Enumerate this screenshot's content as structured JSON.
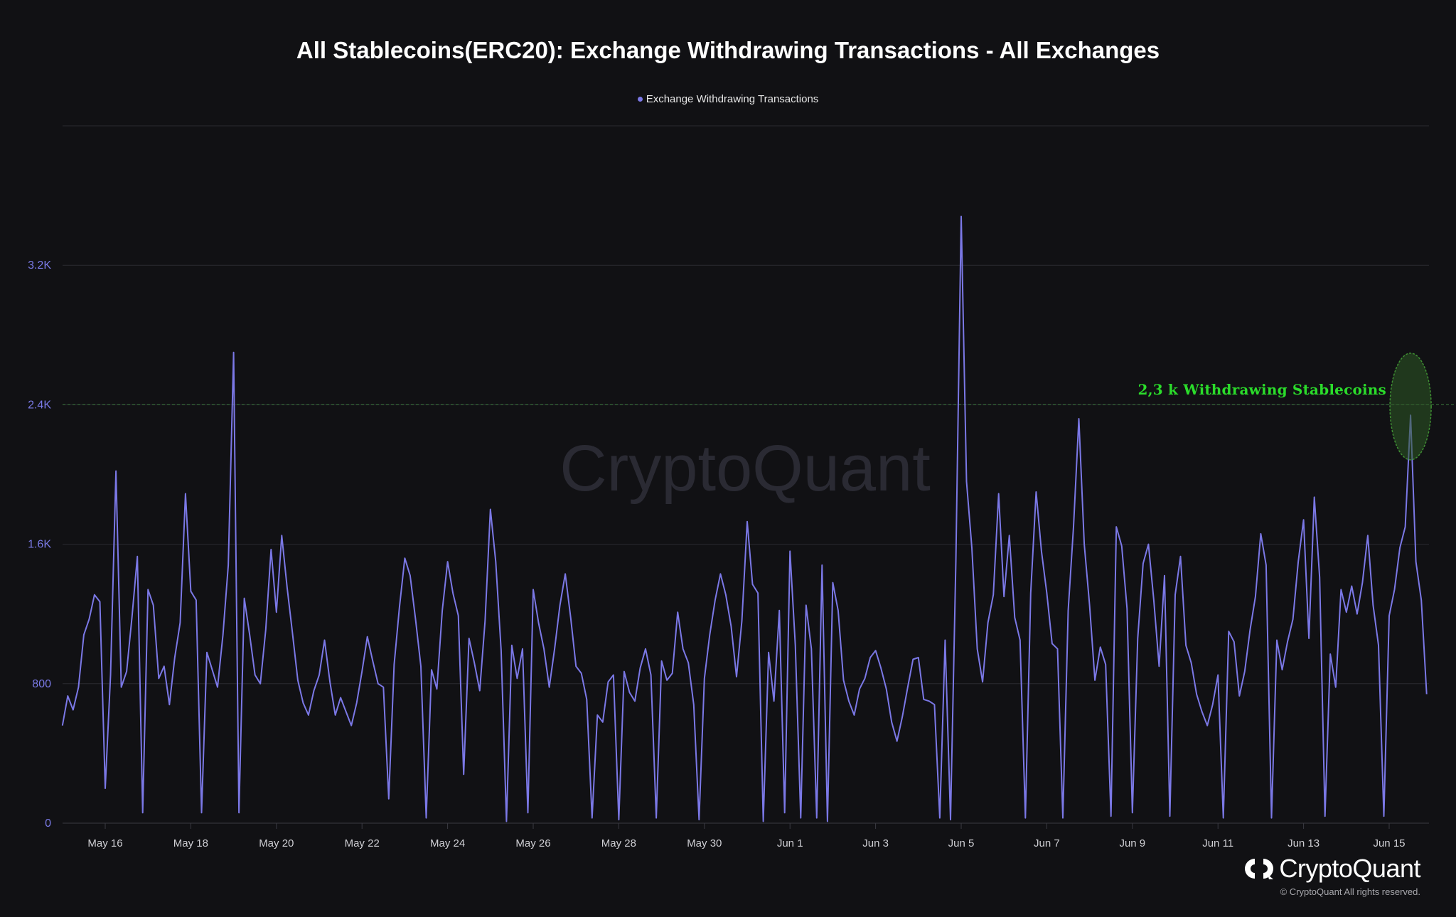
{
  "chart_data": {
    "type": "line",
    "title": "All Stablecoins(ERC20): Exchange Withdrawing Transactions - All Exchanges",
    "legend": {
      "position": "top-center",
      "entries": [
        "Exchange Withdrawing Transactions"
      ]
    },
    "series": [
      {
        "name": "Exchange Withdrawing Transactions",
        "color": "#7b78e6",
        "points": [
          [
            "May 15 00:00",
            560
          ],
          [
            "May 15 03:00",
            730
          ],
          [
            "May 15 06:00",
            650
          ],
          [
            "May 15 09:00",
            780
          ],
          [
            "May 15 12:00",
            1080
          ],
          [
            "May 15 15:00",
            1170
          ],
          [
            "May 15 18:00",
            1310
          ],
          [
            "May 15 21:00",
            1270
          ],
          [
            "May 16 00:00",
            200
          ],
          [
            "May 16 03:00",
            850
          ],
          [
            "May 16 06:00",
            2020
          ],
          [
            "May 16 09:00",
            780
          ],
          [
            "May 16 12:00",
            870
          ],
          [
            "May 16 15:00",
            1180
          ],
          [
            "May 16 18:00",
            1530
          ],
          [
            "May 16 21:00",
            60
          ],
          [
            "May 17 00:00",
            1340
          ],
          [
            "May 17 03:00",
            1250
          ],
          [
            "May 17 06:00",
            830
          ],
          [
            "May 17 09:00",
            900
          ],
          [
            "May 17 12:00",
            680
          ],
          [
            "May 17 15:00",
            950
          ],
          [
            "May 17 18:00",
            1150
          ],
          [
            "May 17 21:00",
            1890
          ],
          [
            "May 18 00:00",
            1330
          ],
          [
            "May 18 03:00",
            1280
          ],
          [
            "May 18 06:00",
            60
          ],
          [
            "May 18 09:00",
            980
          ],
          [
            "May 18 12:00",
            880
          ],
          [
            "May 18 15:00",
            780
          ],
          [
            "May 18 18:00",
            1080
          ],
          [
            "May 18 21:00",
            1480
          ],
          [
            "May 19 00:00",
            2700
          ],
          [
            "May 19 03:00",
            60
          ],
          [
            "May 19 06:00",
            1290
          ],
          [
            "May 19 09:00",
            1080
          ],
          [
            "May 19 12:00",
            850
          ],
          [
            "May 19 15:00",
            800
          ],
          [
            "May 19 18:00",
            1110
          ],
          [
            "May 19 21:00",
            1570
          ],
          [
            "May 20 00:00",
            1210
          ],
          [
            "May 20 03:00",
            1650
          ],
          [
            "May 20 06:00",
            1350
          ],
          [
            "May 20 09:00",
            1090
          ],
          [
            "May 20 12:00",
            820
          ],
          [
            "May 20 15:00",
            690
          ],
          [
            "May 20 18:00",
            620
          ],
          [
            "May 20 21:00",
            760
          ],
          [
            "May 21 00:00",
            850
          ],
          [
            "May 21 03:00",
            1050
          ],
          [
            "May 21 06:00",
            810
          ],
          [
            "May 21 09:00",
            620
          ],
          [
            "May 21 12:00",
            720
          ],
          [
            "May 21 15:00",
            640
          ],
          [
            "May 21 18:00",
            560
          ],
          [
            "May 21 21:00",
            690
          ],
          [
            "May 22 00:00",
            870
          ],
          [
            "May 22 03:00",
            1070
          ],
          [
            "May 22 06:00",
            930
          ],
          [
            "May 22 09:00",
            800
          ],
          [
            "May 22 12:00",
            780
          ],
          [
            "May 22 15:00",
            140
          ],
          [
            "May 22 18:00",
            910
          ],
          [
            "May 22 21:00",
            1240
          ],
          [
            "May 23 00:00",
            1520
          ],
          [
            "May 23 03:00",
            1420
          ],
          [
            "May 23 06:00",
            1170
          ],
          [
            "May 23 09:00",
            900
          ],
          [
            "May 23 12:00",
            30
          ],
          [
            "May 23 15:00",
            880
          ],
          [
            "May 23 18:00",
            770
          ],
          [
            "May 23 21:00",
            1220
          ],
          [
            "May 24 00:00",
            1500
          ],
          [
            "May 24 03:00",
            1320
          ],
          [
            "May 24 06:00",
            1190
          ],
          [
            "May 24 09:00",
            280
          ],
          [
            "May 24 12:00",
            1060
          ],
          [
            "May 24 15:00",
            920
          ],
          [
            "May 24 18:00",
            760
          ],
          [
            "May 24 21:00",
            1160
          ],
          [
            "May 25 00:00",
            1800
          ],
          [
            "May 25 03:00",
            1500
          ],
          [
            "May 25 06:00",
            990
          ],
          [
            "May 25 09:00",
            10
          ],
          [
            "May 25 12:00",
            1020
          ],
          [
            "May 25 15:00",
            830
          ],
          [
            "May 25 18:00",
            1000
          ],
          [
            "May 25 21:00",
            60
          ],
          [
            "May 26 00:00",
            1340
          ],
          [
            "May 26 03:00",
            1150
          ],
          [
            "May 26 06:00",
            1000
          ],
          [
            "May 26 09:00",
            780
          ],
          [
            "May 26 12:00",
            1000
          ],
          [
            "May 26 15:00",
            1250
          ],
          [
            "May 26 18:00",
            1430
          ],
          [
            "May 26 21:00",
            1180
          ],
          [
            "May 27 00:00",
            900
          ],
          [
            "May 27 03:00",
            860
          ],
          [
            "May 27 06:00",
            710
          ],
          [
            "May 27 09:00",
            30
          ],
          [
            "May 27 12:00",
            620
          ],
          [
            "May 27 15:00",
            580
          ],
          [
            "May 27 18:00",
            810
          ],
          [
            "May 27 21:00",
            850
          ],
          [
            "May 28 00:00",
            20
          ],
          [
            "May 28 03:00",
            870
          ],
          [
            "May 28 06:00",
            750
          ],
          [
            "May 28 09:00",
            700
          ],
          [
            "May 28 12:00",
            890
          ],
          [
            "May 28 15:00",
            1000
          ],
          [
            "May 28 18:00",
            850
          ],
          [
            "May 28 21:00",
            30
          ],
          [
            "May 29 00:00",
            930
          ],
          [
            "May 29 03:00",
            820
          ],
          [
            "May 29 06:00",
            860
          ],
          [
            "May 29 09:00",
            1210
          ],
          [
            "May 29 12:00",
            1000
          ],
          [
            "May 29 15:00",
            920
          ],
          [
            "May 29 18:00",
            680
          ],
          [
            "May 29 21:00",
            20
          ],
          [
            "May 30 00:00",
            830
          ],
          [
            "May 30 03:00",
            1080
          ],
          [
            "May 30 06:00",
            1280
          ],
          [
            "May 30 09:00",
            1430
          ],
          [
            "May 30 12:00",
            1310
          ],
          [
            "May 30 15:00",
            1130
          ],
          [
            "May 30 18:00",
            840
          ],
          [
            "May 30 21:00",
            1160
          ],
          [
            "May 31 00:00",
            1730
          ],
          [
            "May 31 03:00",
            1370
          ],
          [
            "May 31 06:00",
            1320
          ],
          [
            "May 31 09:00",
            10
          ],
          [
            "May 31 12:00",
            980
          ],
          [
            "May 31 15:00",
            700
          ],
          [
            "May 31 18:00",
            1220
          ],
          [
            "May 31 21:00",
            60
          ],
          [
            "Jun 1 00:00",
            1560
          ],
          [
            "Jun 1 03:00",
            1020
          ],
          [
            "Jun 1 06:00",
            30
          ],
          [
            "Jun 1 09:00",
            1250
          ],
          [
            "Jun 1 12:00",
            1000
          ],
          [
            "Jun 1 15:00",
            30
          ],
          [
            "Jun 1 18:00",
            1480
          ],
          [
            "Jun 1 21:00",
            10
          ],
          [
            "Jun 2 00:00",
            1380
          ],
          [
            "Jun 2 03:00",
            1220
          ],
          [
            "Jun 2 06:00",
            820
          ],
          [
            "Jun 2 09:00",
            700
          ],
          [
            "Jun 2 12:00",
            620
          ],
          [
            "Jun 2 15:00",
            770
          ],
          [
            "Jun 2 18:00",
            830
          ],
          [
            "Jun 2 21:00",
            950
          ],
          [
            "Jun 3 00:00",
            990
          ],
          [
            "Jun 3 03:00",
            890
          ],
          [
            "Jun 3 06:00",
            770
          ],
          [
            "Jun 3 09:00",
            580
          ],
          [
            "Jun 3 12:00",
            470
          ],
          [
            "Jun 3 15:00",
            610
          ],
          [
            "Jun 3 18:00",
            780
          ],
          [
            "Jun 3 21:00",
            940
          ],
          [
            "Jun 4 00:00",
            950
          ],
          [
            "Jun 4 03:00",
            710
          ],
          [
            "Jun 4 06:00",
            700
          ],
          [
            "Jun 4 09:00",
            680
          ],
          [
            "Jun 4 12:00",
            30
          ],
          [
            "Jun 4 15:00",
            1050
          ],
          [
            "Jun 4 18:00",
            20
          ],
          [
            "Jun 4 21:00",
            1500
          ],
          [
            "Jun 5 00:00",
            3480
          ],
          [
            "Jun 5 03:00",
            1960
          ],
          [
            "Jun 5 06:00",
            1580
          ],
          [
            "Jun 5 09:00",
            1000
          ],
          [
            "Jun 5 12:00",
            810
          ],
          [
            "Jun 5 15:00",
            1150
          ],
          [
            "Jun 5 18:00",
            1310
          ],
          [
            "Jun 5 21:00",
            1890
          ],
          [
            "Jun 6 00:00",
            1300
          ],
          [
            "Jun 6 03:00",
            1650
          ],
          [
            "Jun 6 06:00",
            1180
          ],
          [
            "Jun 6 09:00",
            1050
          ],
          [
            "Jun 6 12:00",
            30
          ],
          [
            "Jun 6 15:00",
            1320
          ],
          [
            "Jun 6 18:00",
            1900
          ],
          [
            "Jun 6 21:00",
            1560
          ],
          [
            "Jun 7 00:00",
            1320
          ],
          [
            "Jun 7 03:00",
            1030
          ],
          [
            "Jun 7 06:00",
            1000
          ],
          [
            "Jun 7 09:00",
            30
          ],
          [
            "Jun 7 12:00",
            1220
          ],
          [
            "Jun 7 15:00",
            1700
          ],
          [
            "Jun 7 18:00",
            2320
          ],
          [
            "Jun 7 21:00",
            1600
          ],
          [
            "Jun 8 00:00",
            1250
          ],
          [
            "Jun 8 03:00",
            820
          ],
          [
            "Jun 8 06:00",
            1010
          ],
          [
            "Jun 8 09:00",
            910
          ],
          [
            "Jun 8 12:00",
            40
          ],
          [
            "Jun 8 15:00",
            1700
          ],
          [
            "Jun 8 18:00",
            1590
          ],
          [
            "Jun 8 21:00",
            1230
          ],
          [
            "Jun 9 00:00",
            60
          ],
          [
            "Jun 9 03:00",
            1060
          ],
          [
            "Jun 9 06:00",
            1490
          ],
          [
            "Jun 9 09:00",
            1600
          ],
          [
            "Jun 9 12:00",
            1280
          ],
          [
            "Jun 9 15:00",
            900
          ],
          [
            "Jun 9 18:00",
            1420
          ],
          [
            "Jun 9 21:00",
            40
          ],
          [
            "Jun 10 00:00",
            1310
          ],
          [
            "Jun 10 03:00",
            1530
          ],
          [
            "Jun 10 06:00",
            1020
          ],
          [
            "Jun 10 09:00",
            920
          ],
          [
            "Jun 10 12:00",
            740
          ],
          [
            "Jun 10 15:00",
            640
          ],
          [
            "Jun 10 18:00",
            560
          ],
          [
            "Jun 10 21:00",
            680
          ],
          [
            "Jun 11 00:00",
            850
          ],
          [
            "Jun 11 03:00",
            30
          ],
          [
            "Jun 11 06:00",
            1100
          ],
          [
            "Jun 11 09:00",
            1040
          ],
          [
            "Jun 11 12:00",
            730
          ],
          [
            "Jun 11 15:00",
            870
          ],
          [
            "Jun 11 18:00",
            1110
          ],
          [
            "Jun 11 21:00",
            1300
          ],
          [
            "Jun 12 00:00",
            1660
          ],
          [
            "Jun 12 03:00",
            1480
          ],
          [
            "Jun 12 06:00",
            30
          ],
          [
            "Jun 12 09:00",
            1050
          ],
          [
            "Jun 12 12:00",
            880
          ],
          [
            "Jun 12 15:00",
            1040
          ],
          [
            "Jun 12 18:00",
            1170
          ],
          [
            "Jun 12 21:00",
            1500
          ],
          [
            "Jun 13 00:00",
            1740
          ],
          [
            "Jun 13 03:00",
            1060
          ],
          [
            "Jun 13 06:00",
            1870
          ],
          [
            "Jun 13 09:00",
            1410
          ],
          [
            "Jun 13 12:00",
            40
          ],
          [
            "Jun 13 15:00",
            970
          ],
          [
            "Jun 13 18:00",
            780
          ],
          [
            "Jun 13 21:00",
            1340
          ],
          [
            "Jun 14 00:00",
            1210
          ],
          [
            "Jun 14 03:00",
            1360
          ],
          [
            "Jun 14 06:00",
            1200
          ],
          [
            "Jun 14 09:00",
            1380
          ],
          [
            "Jun 14 12:00",
            1650
          ],
          [
            "Jun 14 15:00",
            1250
          ],
          [
            "Jun 14 18:00",
            1020
          ],
          [
            "Jun 14 21:00",
            40
          ],
          [
            "Jun 15 00:00",
            1190
          ],
          [
            "Jun 15 03:00",
            1340
          ],
          [
            "Jun 15 06:00",
            1580
          ],
          [
            "Jun 15 09:00",
            1700
          ],
          [
            "Jun 15 12:00",
            2340
          ],
          [
            "Jun 15 15:00",
            1500
          ],
          [
            "Jun 15 18:00",
            1280
          ],
          [
            "Jun 15 21:00",
            740
          ]
        ]
      }
    ],
    "x_ticks": [
      "May 16",
      "May 18",
      "May 20",
      "May 22",
      "May 24",
      "May 26",
      "May 28",
      "May 30",
      "Jun 1",
      "Jun 3",
      "Jun 5",
      "Jun 7",
      "Jun 9",
      "Jun 11",
      "Jun 13",
      "Jun 15"
    ],
    "y_ticks": [
      {
        "value": 0,
        "label": "0"
      },
      {
        "value": 800,
        "label": "800"
      },
      {
        "value": 1600,
        "label": "1.6K"
      },
      {
        "value": 2400,
        "label": "2.4K"
      },
      {
        "value": 3200,
        "label": "3.2K"
      }
    ],
    "ylim": [
      0,
      4000
    ],
    "xlabel": "",
    "ylabel": "",
    "grid": true,
    "reference_line": {
      "value": 2400,
      "style": "dashed",
      "color": "#3c7a3c"
    },
    "annotation": {
      "text": "2,3 k Withdrawing Stablecoins",
      "color": "#2bdc2b",
      "highlight_color": "#2d5a24"
    },
    "watermark": "CryptoQuant"
  },
  "branding": {
    "name": "CryptoQuant",
    "copyright": "© CryptoQuant All rights reserved."
  },
  "colors": {
    "background": "#111114",
    "line": "#7b78e6",
    "axis_label": "#7a7ae6",
    "tick_label": "#cfcfd4"
  }
}
